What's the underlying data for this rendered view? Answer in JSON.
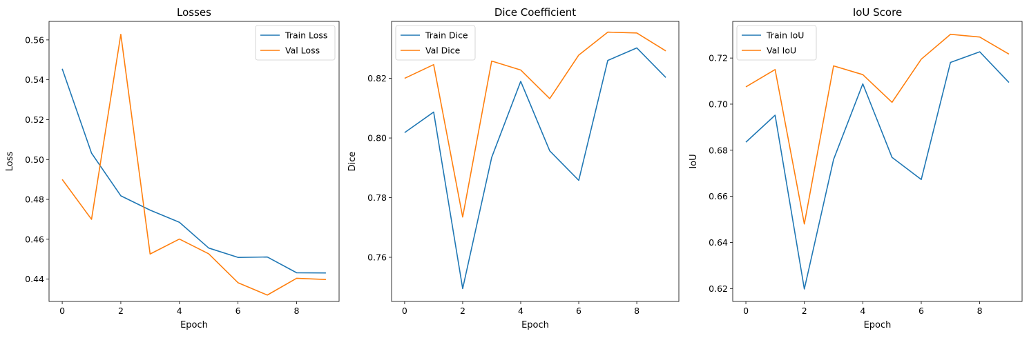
{
  "chart_data": [
    {
      "type": "line",
      "title": "Losses",
      "xlabel": "Epoch",
      "ylabel": "Loss",
      "x": [
        0,
        1,
        2,
        3,
        4,
        5,
        6,
        7,
        8,
        9
      ],
      "xlim": [
        -0.45,
        9.45
      ],
      "ylim": [
        0.4288,
        0.5693
      ],
      "xticks": [
        0,
        2,
        4,
        6,
        8
      ],
      "yticks": [
        0.44,
        0.46,
        0.48,
        0.5,
        0.52,
        0.54,
        0.56
      ],
      "tick_format": "2",
      "legend": "upper right",
      "series": [
        {
          "name": "Train Loss",
          "color": "#1f77b4",
          "values": [
            0.5455,
            0.5032,
            0.4818,
            0.4746,
            0.4685,
            0.4556,
            0.4509,
            0.4511,
            0.4432,
            0.4431
          ]
        },
        {
          "name": "Val Loss",
          "color": "#ff7f0e",
          "values": [
            0.49,
            0.47,
            0.5628,
            0.4526,
            0.4601,
            0.4527,
            0.4382,
            0.432,
            0.4404,
            0.4398
          ]
        }
      ]
    },
    {
      "type": "line",
      "title": "Dice Coefficient",
      "xlabel": "Epoch",
      "ylabel": "Dice",
      "x": [
        0,
        1,
        2,
        3,
        4,
        5,
        6,
        7,
        8,
        9
      ],
      "xlim": [
        -0.45,
        9.45
      ],
      "ylim": [
        0.7452,
        0.8391
      ],
      "xticks": [
        0,
        2,
        4,
        6,
        8
      ],
      "yticks": [
        0.76,
        0.78,
        0.8,
        0.82
      ],
      "tick_format": "2",
      "legend": "upper left",
      "series": [
        {
          "name": "Train Dice",
          "color": "#1f77b4",
          "values": [
            0.8018,
            0.8087,
            0.7495,
            0.7935,
            0.819,
            0.7957,
            0.7858,
            0.826,
            0.8302,
            0.8203
          ]
        },
        {
          "name": "Val Dice",
          "color": "#ff7f0e",
          "values": [
            0.82,
            0.8246,
            0.7735,
            0.8258,
            0.8228,
            0.8132,
            0.8278,
            0.8355,
            0.8352,
            0.8292
          ]
        }
      ]
    },
    {
      "type": "line",
      "title": "IoU Score",
      "xlabel": "Epoch",
      "ylabel": "IoU",
      "x": [
        0,
        1,
        2,
        3,
        4,
        5,
        6,
        7,
        8,
        9
      ],
      "xlim": [
        -0.45,
        9.45
      ],
      "ylim": [
        0.6144,
        0.7359
      ],
      "xticks": [
        0,
        2,
        4,
        6,
        8
      ],
      "yticks": [
        0.62,
        0.64,
        0.66,
        0.68,
        0.7,
        0.72
      ],
      "tick_format": "2",
      "legend": "upper left",
      "series": [
        {
          "name": "Train IoU",
          "color": "#1f77b4",
          "values": [
            0.6835,
            0.6952,
            0.6198,
            0.676,
            0.7088,
            0.6769,
            0.6673,
            0.7181,
            0.7227,
            0.7094
          ]
        },
        {
          "name": "Val IoU",
          "color": "#ff7f0e",
          "values": [
            0.7075,
            0.715,
            0.648,
            0.7166,
            0.7128,
            0.7008,
            0.7195,
            0.7303,
            0.7291,
            0.7217
          ]
        }
      ]
    }
  ]
}
